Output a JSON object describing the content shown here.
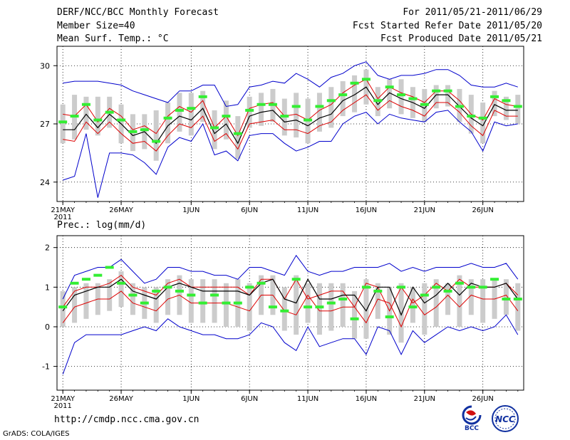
{
  "header": {
    "title": "DERF/NCC/BCC Monthly Forecast",
    "member_size": "Member Size=40",
    "variable": "Mean Surf. Temp.: °C",
    "fcst_range": "For 2011/05/21-2011/06/29",
    "fcst_started": "Fcst Started Refer Date 2011/05/20",
    "fcst_produced": "Fcst Produced Date 2011/05/21"
  },
  "panel2_label": "Prec.: log(mm/d)",
  "footer": {
    "url": "http://cmdp.ncc.cma.gov.cn",
    "grads": "GrADS: COLA/IGES"
  },
  "logos": {
    "bcc_text": "BCC",
    "ncc_text": "NCC"
  },
  "colors": {
    "envelope": "#0000cc",
    "spread": "#dd0000",
    "mean": "#000000",
    "obs": "#33ee33",
    "box": "#cccccc"
  },
  "chart_data": [
    {
      "type": "line",
      "title": "Mean Surf. Temp.: °C",
      "ylim": [
        23,
        31
      ],
      "yticks": [
        "24",
        "27",
        "30"
      ],
      "ytick_values": [
        24,
        27,
        30
      ],
      "xtick_labels": [
        "21MAY",
        "26MAY",
        "1JUN",
        "6JUN",
        "11JUN",
        "16JUN",
        "21JUN",
        "26JUN"
      ],
      "xtick_days": [
        0,
        5,
        11,
        16,
        21,
        26,
        31,
        36
      ],
      "year_label": "2011",
      "days": 40,
      "series": [
        {
          "name": "max",
          "values": [
            29.1,
            29.2,
            29.2,
            29.2,
            29.1,
            29.0,
            28.7,
            28.5,
            28.3,
            28.1,
            28.7,
            28.7,
            29.0,
            29.0,
            27.9,
            28.0,
            28.9,
            29.0,
            29.2,
            29.1,
            29.6,
            29.3,
            28.9,
            29.4,
            29.6,
            30.0,
            30.2,
            29.5,
            29.3,
            29.5,
            29.5,
            29.6,
            29.8,
            29.8,
            29.5,
            29.0,
            28.9,
            28.9,
            29.1,
            28.9
          ]
        },
        {
          "name": "spread_high",
          "values": [
            27.5,
            27.4,
            28.0,
            27.1,
            27.8,
            27.4,
            26.7,
            26.9,
            26.5,
            27.4,
            27.9,
            27.6,
            28.2,
            26.8,
            27.4,
            26.4,
            27.8,
            28.0,
            28.1,
            27.4,
            27.5,
            27.2,
            27.7,
            28.0,
            28.6,
            29.0,
            29.3,
            28.3,
            28.9,
            28.6,
            28.4,
            28.1,
            28.7,
            28.7,
            28.2,
            27.5,
            27.2,
            28.3,
            28.0,
            27.9
          ]
        },
        {
          "name": "mean",
          "values": [
            26.7,
            26.7,
            27.5,
            26.8,
            27.5,
            27.0,
            26.4,
            26.6,
            26.0,
            26.9,
            27.4,
            27.2,
            27.8,
            26.5,
            27.0,
            26.0,
            27.4,
            27.6,
            27.7,
            27.1,
            27.2,
            26.9,
            27.3,
            27.5,
            28.2,
            28.5,
            28.9,
            28.0,
            28.6,
            28.3,
            28.1,
            27.8,
            28.5,
            28.5,
            27.9,
            27.3,
            26.9,
            28.0,
            27.7,
            27.7
          ]
        },
        {
          "name": "spread_low",
          "values": [
            26.2,
            26.1,
            27.1,
            26.5,
            27.1,
            26.5,
            26.0,
            26.1,
            25.6,
            26.4,
            27.0,
            26.8,
            27.4,
            26.1,
            26.5,
            25.7,
            27.0,
            27.1,
            27.2,
            26.7,
            26.7,
            26.5,
            26.9,
            27.1,
            27.7,
            28.1,
            28.5,
            27.7,
            28.2,
            27.9,
            27.7,
            27.4,
            28.1,
            28.1,
            27.6,
            26.9,
            26.4,
            27.7,
            27.4,
            27.4
          ]
        },
        {
          "name": "min",
          "values": [
            24.1,
            24.3,
            26.5,
            23.2,
            25.5,
            25.5,
            25.4,
            25.0,
            24.4,
            25.8,
            26.3,
            26.1,
            27.0,
            25.4,
            25.6,
            25.1,
            26.4,
            26.5,
            26.5,
            26.0,
            25.6,
            25.8,
            26.1,
            26.1,
            27.0,
            27.4,
            27.6,
            27.0,
            27.5,
            27.3,
            27.2,
            27.1,
            27.6,
            27.7,
            27.1,
            26.6,
            25.6,
            27.1,
            26.9,
            27.0
          ]
        },
        {
          "name": "observed",
          "values": [
            27.1,
            27.4,
            28.0,
            27.2,
            27.6,
            27.2,
            26.6,
            26.7,
            26.1,
            27.3,
            27.7,
            27.8,
            28.4,
            26.8,
            27.4,
            26.5,
            27.7,
            28.0,
            28.0,
            27.4,
            27.9,
            27.2,
            27.9,
            28.2,
            28.5,
            29.1,
            29.3,
            28.2,
            28.9,
            28.5,
            28.3,
            28.0,
            28.7,
            28.7,
            27.9,
            27.4,
            27.3,
            28.4,
            28.2,
            27.9
          ]
        },
        {
          "name": "box_high",
          "values": [
            28.0,
            28.5,
            28.4,
            28.4,
            28.4,
            28.0,
            27.5,
            27.5,
            27.7,
            28.1,
            28.6,
            28.6,
            28.7,
            27.7,
            28.2,
            27.4,
            28.4,
            28.6,
            28.8,
            28.3,
            28.6,
            28.3,
            28.6,
            28.9,
            29.2,
            29.5,
            29.8,
            28.9,
            29.3,
            29.3,
            28.9,
            28.8,
            29.0,
            29.0,
            28.8,
            28.5,
            28.1,
            28.7,
            28.4,
            28.5
          ]
        },
        {
          "name": "box_low",
          "values": [
            26.0,
            26.2,
            26.7,
            26.4,
            26.8,
            26.0,
            25.6,
            25.7,
            25.1,
            26.0,
            26.6,
            26.4,
            27.1,
            25.7,
            26.2,
            25.2,
            26.8,
            26.9,
            27.1,
            26.4,
            26.3,
            26.0,
            26.6,
            26.8,
            27.4,
            27.6,
            28.0,
            27.4,
            27.8,
            27.5,
            27.3,
            27.1,
            27.8,
            27.9,
            27.1,
            26.5,
            26.0,
            27.4,
            27.2,
            27.0
          ]
        }
      ]
    },
    {
      "type": "line",
      "title": "Prec.: log(mm/d)",
      "ylim": [
        -1.6,
        2.3
      ],
      "yticks": [
        "2",
        "1",
        "0",
        "-1"
      ],
      "ytick_values": [
        2,
        1,
        0,
        -1
      ],
      "xtick_labels": [
        "21MAY",
        "26MAY",
        "1JUN",
        "6JUN",
        "11JUN",
        "16JUN",
        "21JUN",
        "26JUN"
      ],
      "xtick_days": [
        0,
        5,
        11,
        16,
        21,
        26,
        31,
        36
      ],
      "year_label": "2011",
      "days": 40,
      "series": [
        {
          "name": "max",
          "values": [
            0.7,
            1.3,
            1.4,
            1.5,
            1.5,
            1.7,
            1.4,
            1.1,
            1.2,
            1.5,
            1.5,
            1.4,
            1.4,
            1.3,
            1.3,
            1.2,
            1.5,
            1.5,
            1.4,
            1.3,
            1.8,
            1.4,
            1.3,
            1.4,
            1.4,
            1.5,
            1.5,
            1.5,
            1.6,
            1.4,
            1.5,
            1.4,
            1.5,
            1.5,
            1.5,
            1.6,
            1.5,
            1.5,
            1.6,
            1.2
          ]
        },
        {
          "name": "spread_high",
          "values": [
            0.5,
            0.9,
            1.0,
            1.0,
            1.1,
            1.3,
            1.0,
            0.9,
            0.8,
            1.1,
            1.2,
            1.0,
            1.0,
            1.0,
            1.0,
            1.0,
            0.8,
            1.2,
            1.2,
            0.7,
            1.2,
            0.7,
            0.8,
            0.9,
            0.9,
            0.5,
            1.1,
            1.0,
            0.4,
            1.0,
            0.6,
            0.8,
            1.1,
            0.9,
            1.2,
            1.0,
            1.0,
            1.0,
            1.1,
            0.8
          ]
        },
        {
          "name": "mean",
          "values": [
            0.4,
            0.8,
            0.9,
            1.0,
            1.0,
            1.2,
            0.9,
            0.8,
            0.7,
            1.0,
            1.1,
            1.0,
            0.9,
            0.9,
            0.9,
            0.9,
            0.8,
            1.1,
            1.2,
            0.7,
            0.6,
            1.2,
            0.7,
            0.7,
            0.8,
            0.8,
            0.4,
            1.0,
            1.0,
            0.3,
            1.0,
            0.6,
            0.8,
            1.1,
            0.8,
            1.1,
            1.0,
            1.0,
            1.1,
            0.7
          ]
        },
        {
          "name": "spread_low",
          "values": [
            0.1,
            0.5,
            0.6,
            0.7,
            0.7,
            0.9,
            0.6,
            0.5,
            0.4,
            0.7,
            0.8,
            0.6,
            0.6,
            0.6,
            0.6,
            0.5,
            0.4,
            0.8,
            0.8,
            0.4,
            0.3,
            0.8,
            0.4,
            0.4,
            0.5,
            0.5,
            0.1,
            0.7,
            0.6,
            0.0,
            0.7,
            0.3,
            0.5,
            0.8,
            0.5,
            0.8,
            0.7,
            0.7,
            0.8,
            0.4
          ]
        },
        {
          "name": "min",
          "values": [
            -1.2,
            -0.4,
            -0.2,
            -0.2,
            -0.2,
            -0.2,
            -0.1,
            0.0,
            -0.1,
            0.2,
            0.0,
            -0.1,
            -0.2,
            -0.2,
            -0.3,
            -0.3,
            -0.2,
            0.1,
            0.0,
            -0.4,
            -0.6,
            0.0,
            -0.5,
            -0.4,
            -0.3,
            -0.3,
            -0.7,
            0.0,
            -0.1,
            -0.7,
            -0.1,
            -0.4,
            -0.2,
            0.0,
            -0.1,
            0.0,
            -0.1,
            0.0,
            0.3,
            -0.2
          ]
        },
        {
          "name": "observed",
          "values": [
            0.5,
            1.1,
            1.2,
            1.3,
            1.5,
            1.1,
            0.8,
            0.6,
            0.9,
            1.0,
            0.9,
            0.8,
            0.6,
            0.8,
            0.6,
            0.6,
            1.0,
            1.1,
            0.5,
            0.4,
            1.2,
            0.5,
            0.5,
            0.6,
            0.7,
            0.2,
            1.0,
            0.9,
            0.25,
            1.0,
            0.5,
            0.8,
            1.0,
            0.9,
            1.1,
            1.0,
            1.0,
            1.2,
            0.7,
            0.7
          ]
        },
        {
          "name": "box_high",
          "values": [
            0.9,
            1.0,
            1.1,
            1.1,
            1.2,
            1.4,
            1.1,
            1.0,
            1.0,
            1.2,
            1.3,
            1.2,
            1.2,
            1.2,
            1.1,
            1.2,
            1.1,
            1.3,
            1.3,
            1.0,
            1.3,
            1.1,
            1.1,
            1.1,
            1.1,
            0.9,
            1.2,
            1.1,
            1.0,
            1.1,
            1.0,
            1.1,
            1.2,
            1.1,
            1.3,
            1.2,
            1.2,
            1.2,
            1.2,
            1.1
          ]
        },
        {
          "name": "box_low",
          "values": [
            0.0,
            0.1,
            0.2,
            0.3,
            0.4,
            0.5,
            0.3,
            0.2,
            0.1,
            0.3,
            0.3,
            0.1,
            0.1,
            0.1,
            0.0,
            0.0,
            -0.1,
            0.3,
            0.3,
            -0.1,
            -0.2,
            0.1,
            -0.2,
            -0.1,
            0.0,
            -0.3,
            -0.3,
            0.2,
            -0.2,
            -0.4,
            0.1,
            -0.2,
            0.0,
            0.3,
            0.0,
            0.3,
            0.1,
            0.2,
            0.3,
            -0.1
          ]
        }
      ]
    }
  ]
}
